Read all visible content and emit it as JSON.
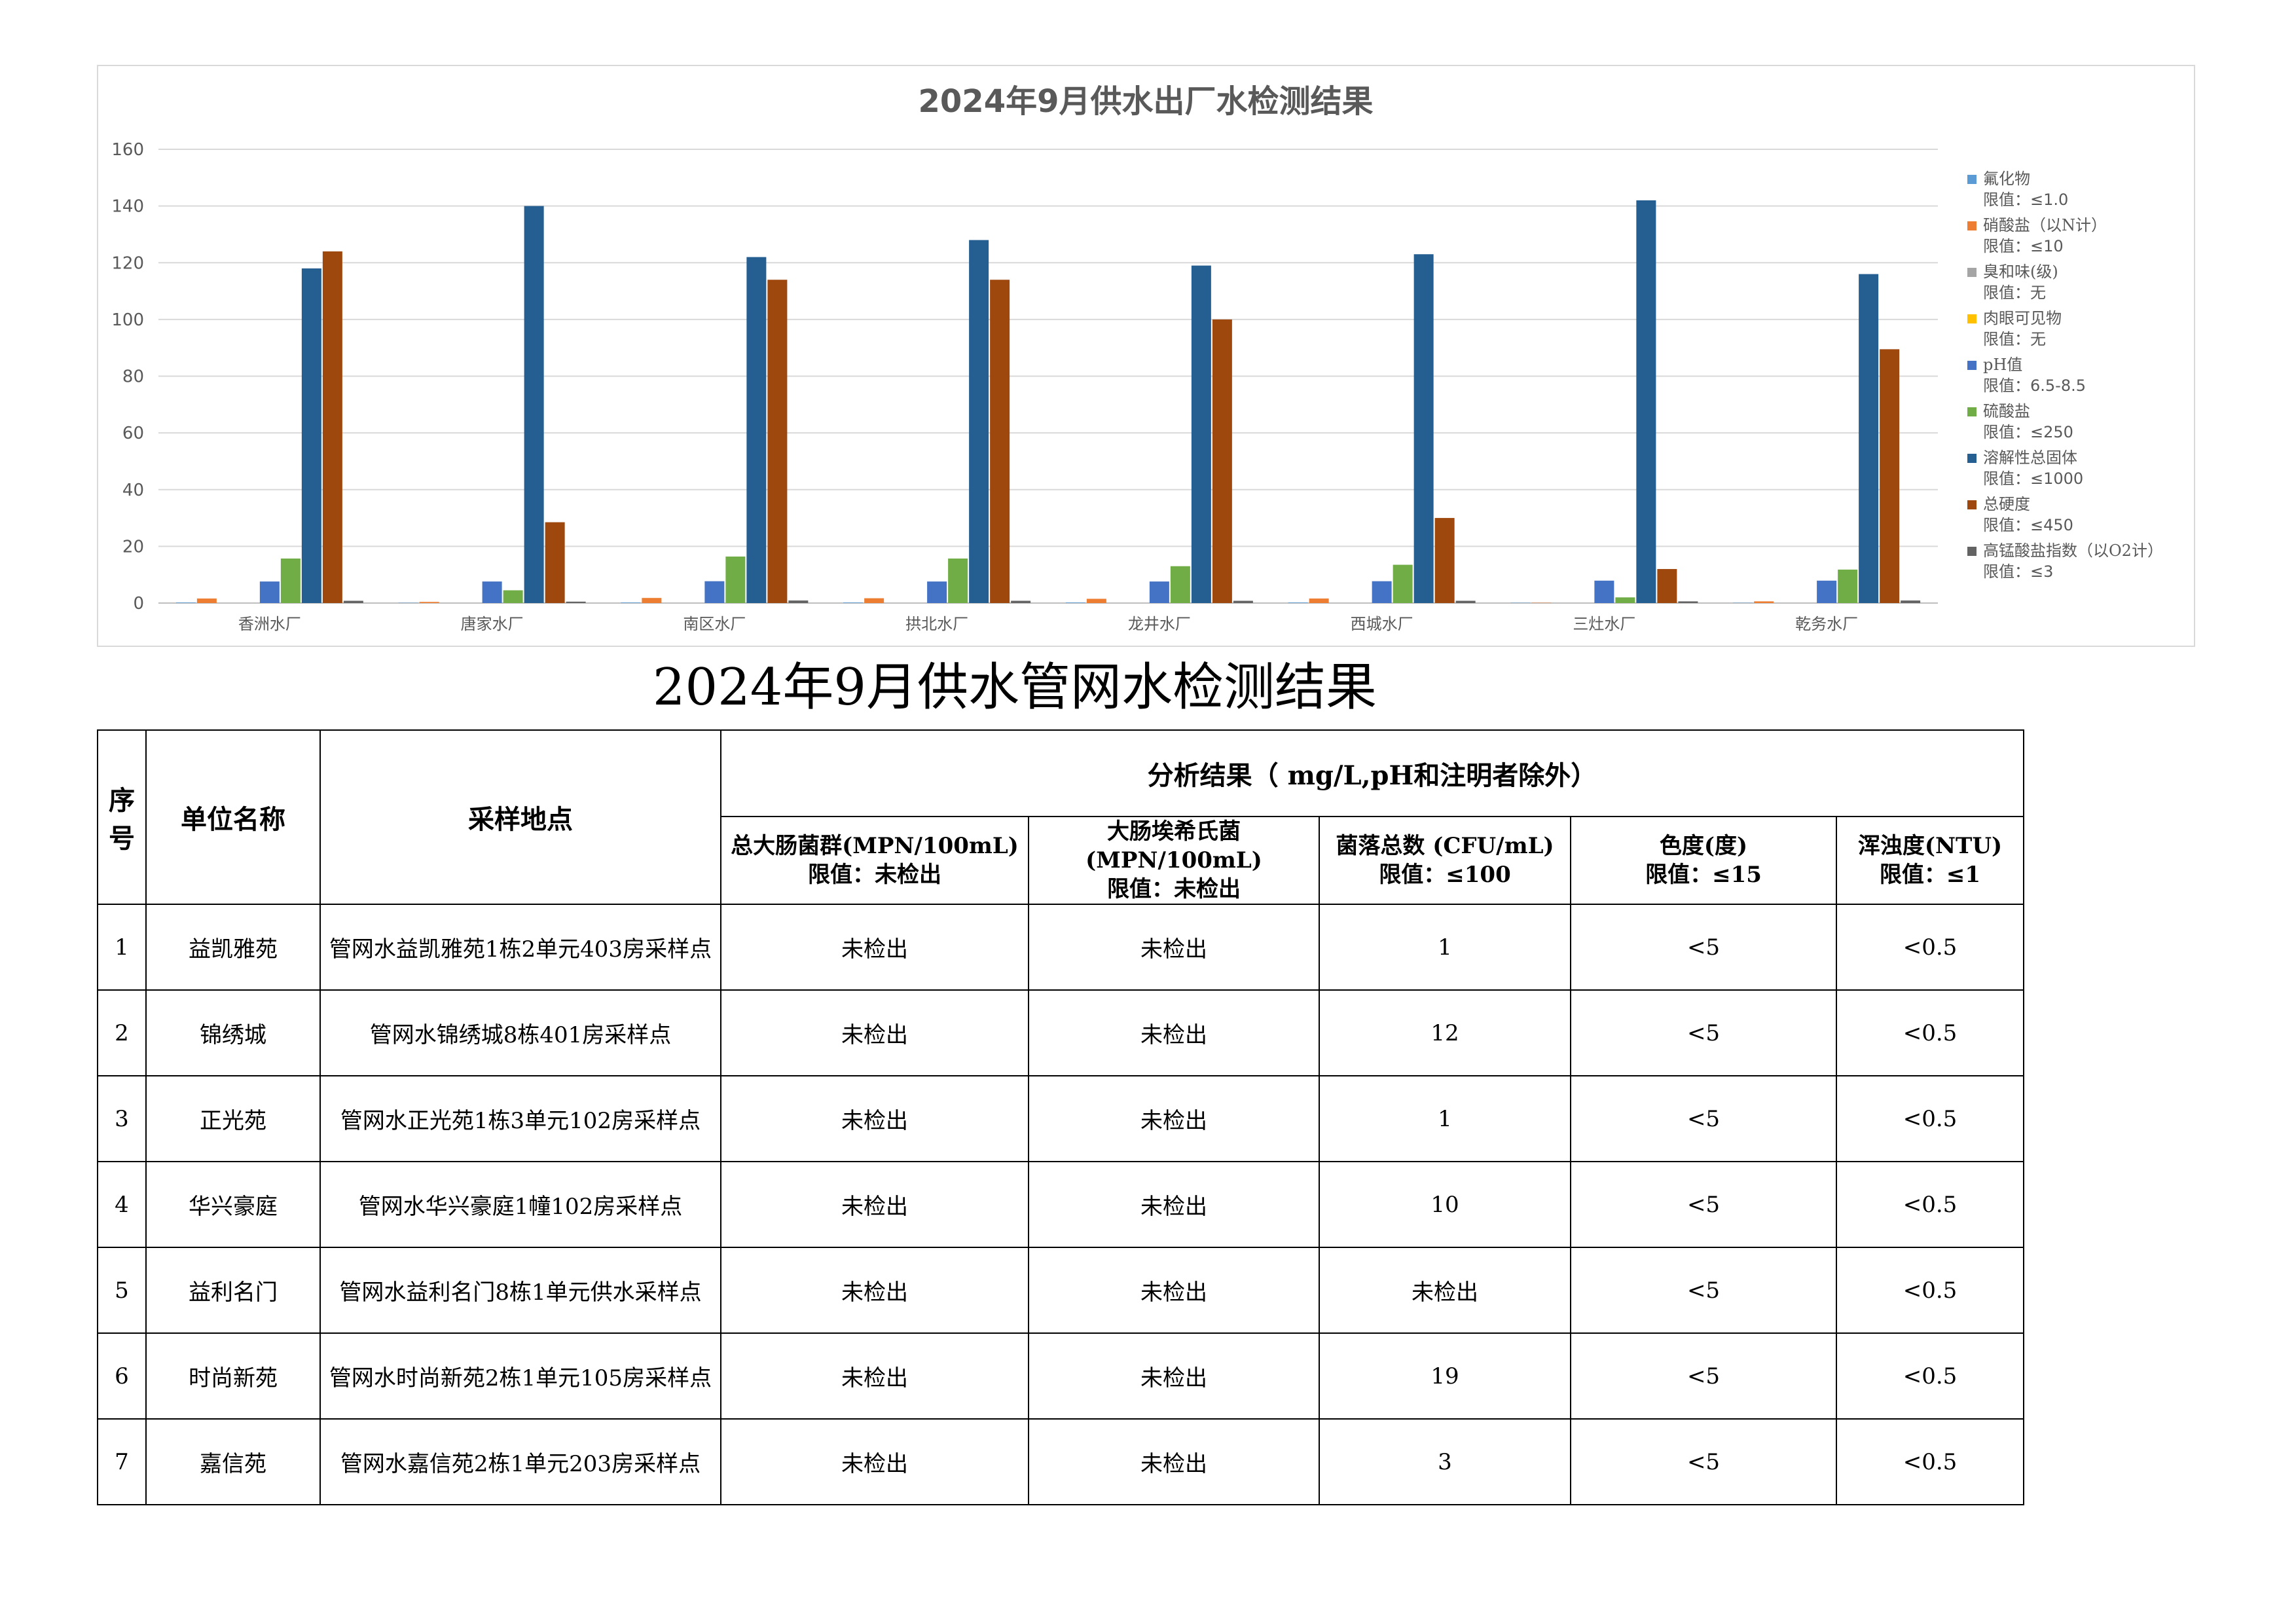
{
  "chart_data": {
    "type": "bar",
    "title": "2024年9月供水出厂水检测结果",
    "categories": [
      "香洲水厂",
      "唐家水厂",
      "南区水厂",
      "拱北水厂",
      "龙井水厂",
      "西城水厂",
      "三灶水厂",
      "乾务水厂"
    ],
    "ylim": [
      0,
      160
    ],
    "yticks": [
      0,
      20,
      40,
      60,
      80,
      100,
      120,
      140,
      160
    ],
    "grid": true,
    "legend_position": "right",
    "series": [
      {
        "name": "氟化物",
        "limit": "限值：≤1.0",
        "color": "#5b9bd5",
        "values": [
          0.2,
          0.1,
          0.2,
          0.2,
          0.2,
          0.2,
          0.1,
          0.1
        ]
      },
      {
        "name": "硝酸盐（以N计）",
        "limit": "限值：≤10",
        "color": "#ed7d31",
        "values": [
          1.6,
          0.4,
          1.8,
          1.7,
          1.5,
          1.6,
          0.1,
          0.6
        ]
      },
      {
        "name": "臭和味(级)",
        "limit": "限值：无",
        "color": "#a5a5a5",
        "values": [
          0,
          0,
          0,
          0,
          0,
          0,
          0,
          0
        ]
      },
      {
        "name": "肉眼可见物",
        "limit": "限值：无",
        "color": "#ffc000",
        "values": [
          0,
          0,
          0,
          0,
          0,
          0,
          0,
          0
        ]
      },
      {
        "name": "pH值",
        "limit": "限值：6.5-8.5",
        "color": "#4472c4",
        "values": [
          7.6,
          7.6,
          7.7,
          7.6,
          7.6,
          7.7,
          7.9,
          7.9
        ]
      },
      {
        "name": "硫酸盐",
        "limit": "限值：≤250",
        "color": "#70ad47",
        "values": [
          15.7,
          4.5,
          16.4,
          15.7,
          13,
          13.5,
          2,
          11.8
        ]
      },
      {
        "name": "溶解性总固体",
        "limit": "限值：≤1000",
        "color": "#255e91",
        "values": [
          118,
          140,
          122,
          128,
          119,
          123,
          142,
          116
        ]
      },
      {
        "name": "总硬度",
        "limit": "限值：≤450",
        "color": "#9e480e",
        "values": [
          124,
          28.5,
          114,
          114,
          100,
          30,
          12,
          89.5
        ]
      },
      {
        "name": "高锰酸盐指数（以O2计）",
        "limit": "限值：≤3",
        "color": "#636363",
        "values": [
          0.8,
          0.5,
          0.9,
          0.8,
          0.8,
          0.8,
          0.6,
          0.9
        ]
      }
    ]
  },
  "table": {
    "title": "2024年9月供水管网水检测结果",
    "headers": {
      "seq": [
        "序",
        "号"
      ],
      "unit": "单位名称",
      "site": "采样地点",
      "analysis": "分析结果（ mg/L,pH和注明者除外）",
      "cols": [
        {
          "name": "总大肠菌群(MPN/100mL)",
          "limit": "限值：未检出"
        },
        {
          "name": "大肠埃希氏菌(MPN/100mL)",
          "limit": "限值：未检出"
        },
        {
          "name": "菌落总数 (CFU/mL)",
          "limit": "限值：≤100"
        },
        {
          "name": "色度(度)",
          "limit": "限值：≤15"
        },
        {
          "name": "浑浊度(NTU)",
          "limit": "限值：≤1"
        }
      ]
    },
    "rows": [
      {
        "seq": "1",
        "unit": "益凯雅苑",
        "site": "管网水益凯雅苑1栋2单元403房采样点",
        "v1": "未检出",
        "v2": "未检出",
        "v3": "1",
        "v4": "<5",
        "v5": "<0.5"
      },
      {
        "seq": "2",
        "unit": "锦绣城",
        "site": "管网水锦绣城8栋401房采样点",
        "v1": "未检出",
        "v2": "未检出",
        "v3": "12",
        "v4": "<5",
        "v5": "<0.5"
      },
      {
        "seq": "3",
        "unit": "正光苑",
        "site": "管网水正光苑1栋3单元102房采样点",
        "v1": "未检出",
        "v2": "未检出",
        "v3": "1",
        "v4": "<5",
        "v5": "<0.5"
      },
      {
        "seq": "4",
        "unit": "华兴豪庭",
        "site": "管网水华兴豪庭1幢102房采样点",
        "v1": "未检出",
        "v2": "未检出",
        "v3": "10",
        "v4": "<5",
        "v5": "<0.5"
      },
      {
        "seq": "5",
        "unit": "益利名门",
        "site": "管网水益利名门8栋1单元供水采样点",
        "v1": "未检出",
        "v2": "未检出",
        "v3": "未检出",
        "v4": "<5",
        "v5": "<0.5"
      },
      {
        "seq": "6",
        "unit": "时尚新苑",
        "site": "管网水时尚新苑2栋1单元105房采样点",
        "v1": "未检出",
        "v2": "未检出",
        "v3": "19",
        "v4": "<5",
        "v5": "<0.5"
      },
      {
        "seq": "7",
        "unit": "嘉信苑",
        "site": "管网水嘉信苑2栋1单元203房采样点",
        "v1": "未检出",
        "v2": "未检出",
        "v3": "3",
        "v4": "<5",
        "v5": "<0.5"
      }
    ]
  }
}
